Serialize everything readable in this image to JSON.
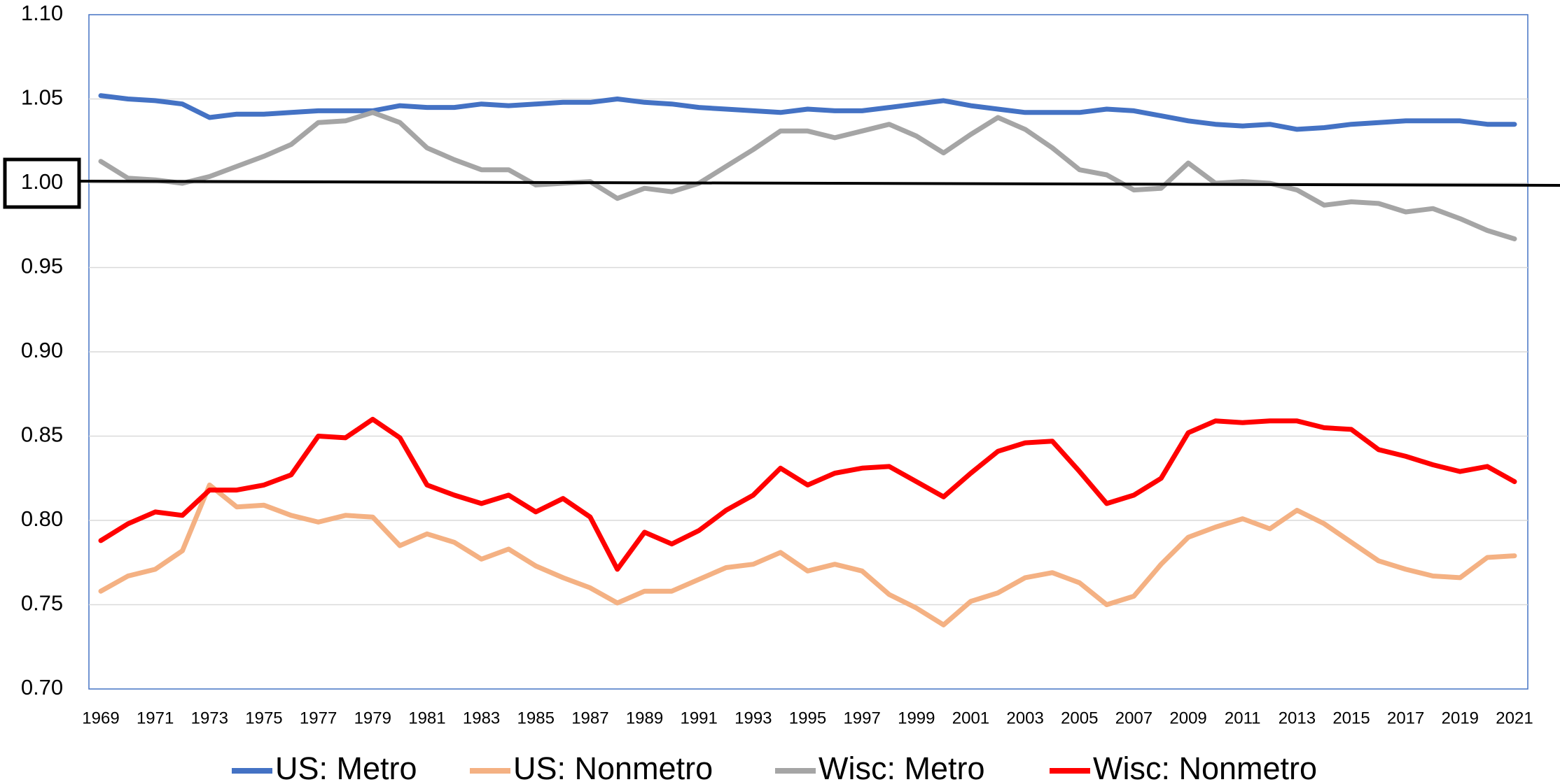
{
  "chart_data": {
    "type": "line",
    "categories": [
      "1969",
      null,
      "1971",
      null,
      "1973",
      null,
      "1975",
      null,
      "1977",
      null,
      "1979",
      null,
      "1981",
      null,
      "1983",
      null,
      "1985",
      null,
      "1987",
      null,
      "1989",
      null,
      "1991",
      null,
      "1993",
      null,
      "1995",
      null,
      "1997",
      null,
      "1999",
      null,
      "2001",
      null,
      "2003",
      null,
      "2005",
      null,
      "2007",
      null,
      "2009",
      null,
      "2011",
      null,
      "2013",
      null,
      "2015",
      null,
      "2017",
      null,
      "2019",
      null,
      "2021"
    ],
    "series": [
      {
        "name": "US: Metro",
        "color": "#4472c4",
        "values": [
          1.052,
          1.05,
          1.049,
          1.047,
          1.039,
          1.041,
          1.041,
          1.042,
          1.043,
          1.043,
          1.043,
          1.046,
          1.045,
          1.045,
          1.047,
          1.046,
          1.047,
          1.048,
          1.048,
          1.05,
          1.048,
          1.047,
          1.045,
          1.044,
          1.043,
          1.042,
          1.044,
          1.043,
          1.043,
          1.045,
          1.047,
          1.049,
          1.046,
          1.044,
          1.042,
          1.042,
          1.042,
          1.044,
          1.043,
          1.04,
          1.037,
          1.035,
          1.034,
          1.035,
          1.032,
          1.033,
          1.035,
          1.036,
          1.037,
          1.037,
          1.037,
          1.035,
          1.035
        ]
      },
      {
        "name": "US: Nonmetro",
        "color": "#f4b183",
        "values": [
          0.758,
          0.767,
          0.771,
          0.782,
          0.821,
          0.808,
          0.809,
          0.803,
          0.799,
          0.803,
          0.802,
          0.785,
          0.792,
          0.787,
          0.777,
          0.783,
          0.773,
          0.766,
          0.76,
          0.751,
          0.758,
          0.758,
          0.765,
          0.772,
          0.774,
          0.781,
          0.77,
          0.774,
          0.77,
          0.756,
          0.748,
          0.738,
          0.752,
          0.757,
          0.766,
          0.769,
          0.763,
          0.75,
          0.755,
          0.774,
          0.79,
          0.796,
          0.801,
          0.795,
          0.806,
          0.798,
          0.787,
          0.776,
          0.771,
          0.767,
          0.766,
          0.778,
          0.779
        ]
      },
      {
        "name": "Wisc: Metro",
        "color": "#a5a5a5",
        "values": [
          1.013,
          1.003,
          1.002,
          1.0,
          1.004,
          1.01,
          1.016,
          1.023,
          1.036,
          1.037,
          1.042,
          1.036,
          1.021,
          1.014,
          1.008,
          1.008,
          0.999,
          1.0,
          1.001,
          0.991,
          0.997,
          0.995,
          1.0,
          1.01,
          1.02,
          1.031,
          1.031,
          1.027,
          1.031,
          1.035,
          1.028,
          1.018,
          1.029,
          1.039,
          1.032,
          1.021,
          1.008,
          1.005,
          0.996,
          0.997,
          1.012,
          1.0,
          1.001,
          1.0,
          0.996,
          0.987,
          0.989,
          0.988,
          0.983,
          0.985,
          0.979,
          0.972,
          0.967
        ]
      },
      {
        "name": "Wisc: Nonmetro",
        "color": "#ff0000",
        "values": [
          0.788,
          0.798,
          0.805,
          0.803,
          0.818,
          0.818,
          0.821,
          0.827,
          0.85,
          0.849,
          0.86,
          0.849,
          0.821,
          0.815,
          0.81,
          0.815,
          0.805,
          0.813,
          0.802,
          0.771,
          0.793,
          0.786,
          0.794,
          0.806,
          0.815,
          0.831,
          0.821,
          0.828,
          0.831,
          0.832,
          0.823,
          0.814,
          0.828,
          0.841,
          0.846,
          0.847,
          0.829,
          0.81,
          0.815,
          0.825,
          0.852,
          0.859,
          0.858,
          0.859,
          0.859,
          0.855,
          0.854,
          0.842,
          0.838,
          0.833,
          0.829,
          0.832,
          0.823
        ]
      }
    ],
    "ylim": [
      0.7,
      1.1
    ],
    "yticks": [
      {
        "value": 0.7,
        "label": "0.70"
      },
      {
        "value": 0.75,
        "label": "0.75"
      },
      {
        "value": 0.8,
        "label": "0.80"
      },
      {
        "value": 0.85,
        "label": "0.85"
      },
      {
        "value": 0.9,
        "label": "0.90"
      },
      {
        "value": 0.95,
        "label": "0.95"
      },
      {
        "value": 1.0,
        "label": "1.00"
      },
      {
        "value": 1.05,
        "label": "1.05"
      },
      {
        "value": 1.1,
        "label": "1.10"
      }
    ],
    "grid": true,
    "reference_line": {
      "value": 1,
      "color": "#000000"
    },
    "legend": "bottom"
  }
}
